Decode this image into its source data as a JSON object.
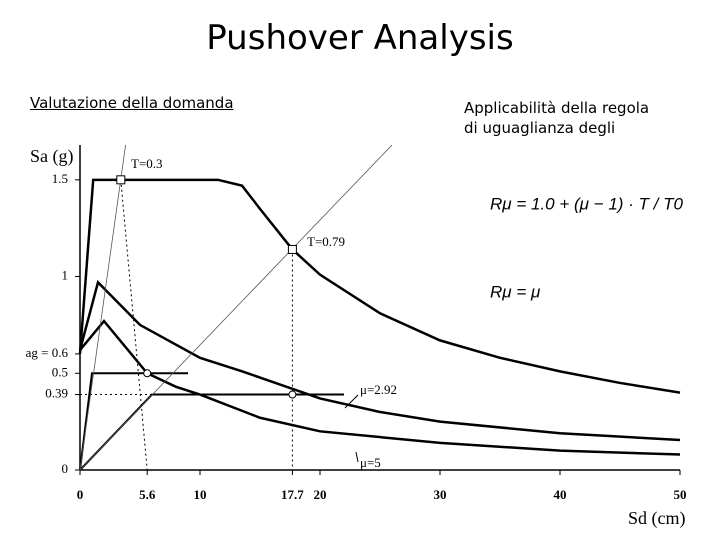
{
  "header": {
    "title": "Pushover Analysis"
  },
  "left_caption": "Valutazione della domanda",
  "right_text": [
    "Applicabilità della regola",
    "di uguaglianza degli"
  ],
  "formulas": [
    "Rμ = 1.0 + (μ − 1) · T / T0",
    "Rμ = μ"
  ],
  "chart_data": {
    "type": "line",
    "x_label": "Sd (cm)",
    "y_label": "Sa (g)",
    "xlim": [
      0,
      50
    ],
    "ylim": [
      0,
      1.68
    ],
    "xticks": [
      0,
      5.6,
      10,
      17.7,
      20,
      30,
      40,
      50
    ],
    "yticks": [
      0,
      0.39,
      0.5,
      {
        "value": 0.6,
        "label": "ag = 0.6"
      },
      1,
      1.5
    ],
    "grid": false,
    "series": [
      {
        "color": "#000",
        "width": 2.5,
        "x": [
          0,
          1.1,
          11.5,
          13.5,
          15,
          17.7,
          20,
          25,
          30,
          35,
          40,
          45,
          50
        ],
        "values": [
          0.6,
          1.5,
          1.5,
          1.47,
          1.35,
          1.14,
          1.01,
          0.81,
          0.67,
          0.58,
          0.51,
          0.45,
          0.4
        ]
      },
      {
        "color": "#000",
        "width": 2.5,
        "x": [
          0,
          1.5,
          5,
          10,
          13.5,
          20,
          25,
          30,
          40,
          50
        ],
        "values": [
          0.62,
          0.97,
          0.75,
          0.58,
          0.51,
          0.37,
          0.3,
          0.25,
          0.19,
          0.155
        ]
      },
      {
        "color": "#000",
        "width": 2.5,
        "x": [
          0,
          2,
          5.6,
          8,
          10,
          15,
          20,
          30,
          40,
          50
        ],
        "values": [
          0.62,
          0.77,
          0.5,
          0.43,
          0.39,
          0.27,
          0.2,
          0.14,
          0.1,
          0.08
        ]
      },
      {
        "color": "#000",
        "width": 2,
        "x": [
          0,
          1,
          9
        ],
        "values": [
          0,
          0.5,
          0.5
        ]
      },
      {
        "color": "#000",
        "width": 2,
        "x": [
          0,
          6,
          22
        ],
        "values": [
          0,
          0.39,
          0.39
        ]
      },
      {
        "color": "#555",
        "width": 0.8,
        "x": [
          0,
          3.8
        ],
        "values": [
          0,
          1.68
        ]
      },
      {
        "color": "#555",
        "width": 0.8,
        "x": [
          0,
          26
        ],
        "values": [
          0,
          1.68
        ]
      },
      {
        "color": "#000",
        "width": 1,
        "dash": true,
        "x": [
          3.4,
          5.6
        ],
        "values": [
          1.5,
          0
        ]
      },
      {
        "color": "#000",
        "width": 1,
        "dash": true,
        "x": [
          17.7,
          17.7
        ],
        "values": [
          1.14,
          0
        ]
      },
      {
        "color": "#000",
        "width": 1,
        "dash": true,
        "x": [
          0,
          17.7
        ],
        "values": [
          0.39,
          0.39
        ]
      }
    ],
    "markers": {
      "x": [
        3.4,
        17.7,
        5.6,
        17.7
      ],
      "values": [
        1.5,
        1.14,
        0.5,
        0.39
      ],
      "shapes": [
        "square",
        "square",
        "circle",
        "circle"
      ]
    },
    "annotations": [
      "T=0.3",
      "T=0.79",
      "μ=2.92",
      "μ=5"
    ]
  }
}
